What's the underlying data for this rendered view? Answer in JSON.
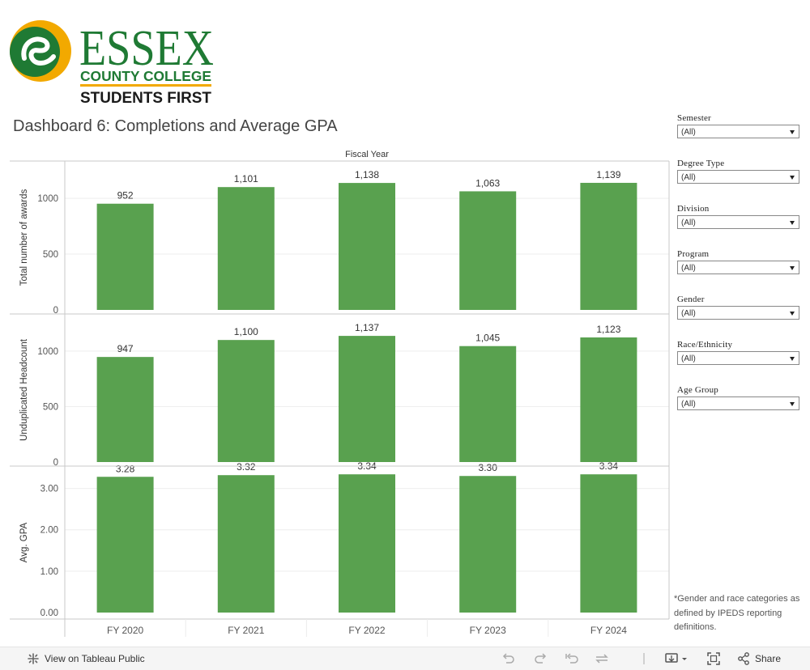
{
  "logo": {
    "wordmark": "ESSEX",
    "line1": "COUNTY COLLEGE",
    "line2": "STUDENTS FIRST",
    "colors": {
      "green": "#1f7a34",
      "gold": "#f2a900"
    }
  },
  "title": "Dashboard 6: Completions and Average GPA",
  "chart_data": {
    "type": "bar",
    "title": "Fiscal Year",
    "categories": [
      "FY 2020",
      "FY 2021",
      "FY 2022",
      "FY 2023",
      "FY 2024"
    ],
    "bar_color": "#59a14f",
    "panels": [
      {
        "ylabel": "Total number of awards",
        "values": [
          952,
          1101,
          1138,
          1063,
          1139
        ],
        "labels": [
          "952",
          "1,101",
          "1,138",
          "1,063",
          "1,139"
        ],
        "ylim": [
          0,
          1320
        ],
        "ticks": [
          0,
          500,
          1000
        ],
        "tick_labels": [
          "0",
          "500",
          "1000"
        ]
      },
      {
        "ylabel": "Unduplicated Headcount",
        "values": [
          947,
          1100,
          1137,
          1045,
          1123
        ],
        "labels": [
          "947",
          "1,100",
          "1,137",
          "1,045",
          "1,123"
        ],
        "ylim": [
          0,
          1320
        ],
        "ticks": [
          0,
          500,
          1000
        ],
        "tick_labels": [
          "0",
          "500",
          "1000"
        ]
      },
      {
        "ylabel": "Avg. GPA",
        "values": [
          3.28,
          3.32,
          3.34,
          3.3,
          3.34
        ],
        "labels": [
          "3.28",
          "3.32",
          "3.34",
          "3.30",
          "3.34"
        ],
        "ylim": [
          0,
          3.5
        ],
        "ticks": [
          0,
          1,
          2,
          3
        ],
        "tick_labels": [
          "0.00",
          "1.00",
          "2.00",
          "3.00"
        ]
      }
    ]
  },
  "filters": [
    {
      "label": "Semester",
      "value": "(All)"
    },
    {
      "label": "Degree  Type",
      "value": "(All)"
    },
    {
      "label": "Division",
      "value": "(All)"
    },
    {
      "label": "Program",
      "value": "(All)"
    },
    {
      "label": "Gender",
      "value": "(All)"
    },
    {
      "label": "Race/Ethnicity",
      "value": "(All)"
    },
    {
      "label": "Age  Group",
      "value": "(All)"
    }
  ],
  "footnote": "*Gender and race categories as defined by IPEDS reporting definitions.",
  "toolbar": {
    "view_label": "View on Tableau Public",
    "share_label": "Share"
  }
}
